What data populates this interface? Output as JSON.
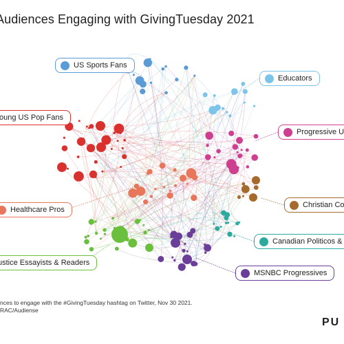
{
  "header": {
    "title": "Audiences Engaging with GivingTuesday 2021"
  },
  "clusters": [
    {
      "id": "us-sports-fans",
      "label": "US Sports Fans",
      "color": "#5b9bd5"
    },
    {
      "id": "educators",
      "label": "Educators",
      "color": "#7cc4ea"
    },
    {
      "id": "young-us-pop-fans",
      "label": "oung US Pop Fans",
      "color": "#d9312e"
    },
    {
      "id": "progressive-uk",
      "label": "Progressive UK A",
      "color": "#cf3f8f"
    },
    {
      "id": "healthcare-pros",
      "label": "Healthcare Pros",
      "color": "#e8765b"
    },
    {
      "id": "christian-con",
      "label": "Christian Con",
      "color": "#a66a2c"
    },
    {
      "id": "canadian-politicos",
      "label": "Canadian Politicos & Ne",
      "color": "#2bab9e"
    },
    {
      "id": "justice-essayists",
      "label": "ustice Essayists & Readers",
      "color": "#6abf3d"
    },
    {
      "id": "msnbc-progressives",
      "label": "MSNBC Progressives",
      "color": "#6a3d99"
    }
  ],
  "footnote": {
    "line1": "nces to engage with the #GivingTuesday hashtag on Twitter, Nov 30 2021.",
    "line2": "RAC/Audiense"
  },
  "brand": {
    "text": "PU"
  }
}
